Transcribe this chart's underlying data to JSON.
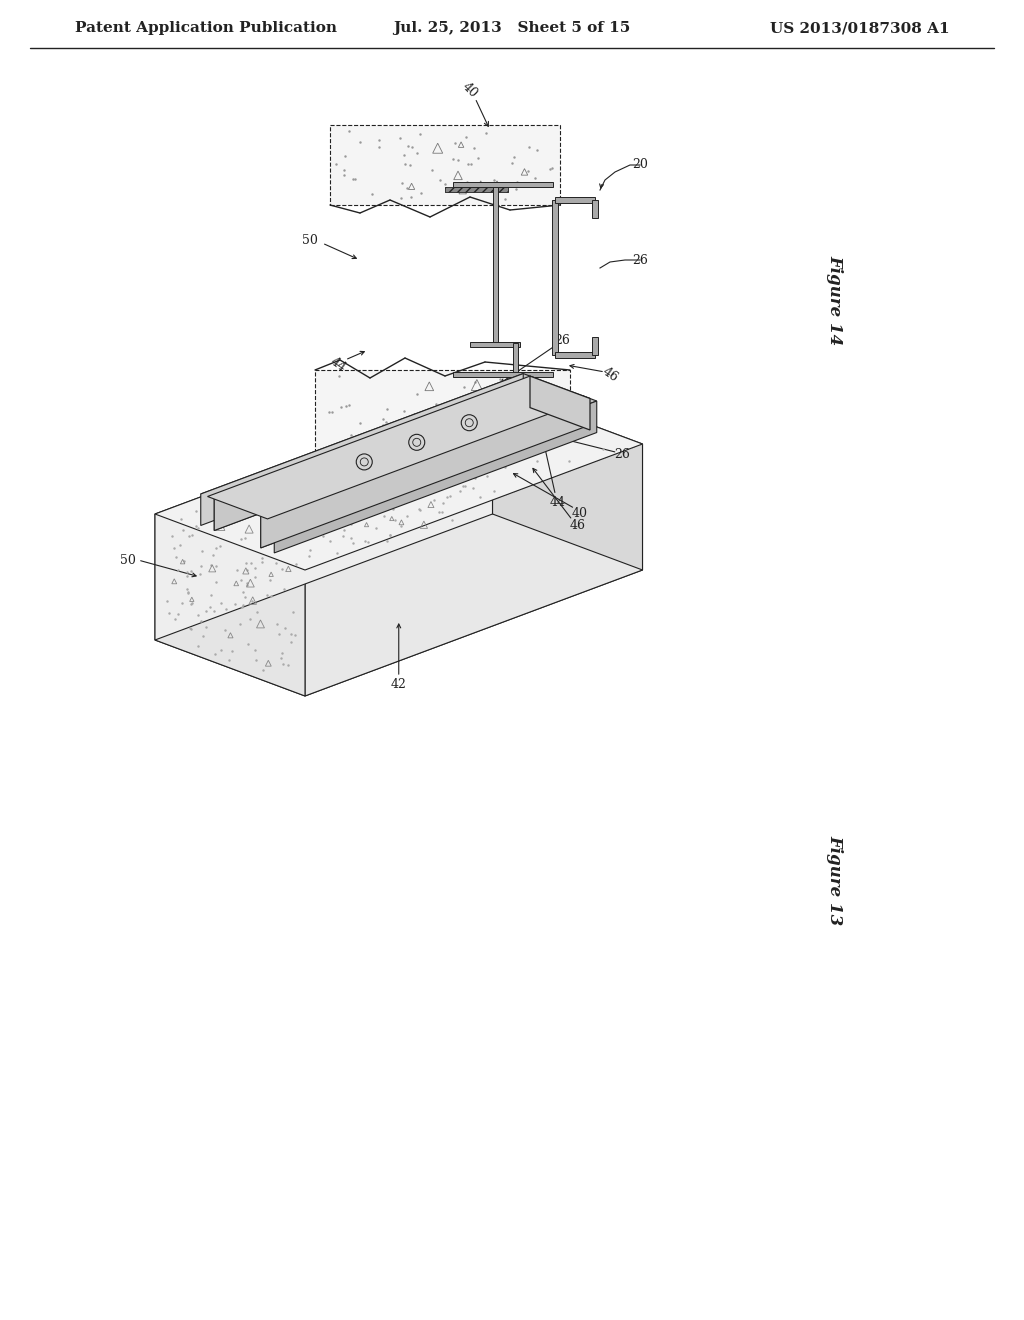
{
  "background_color": "#ffffff",
  "header_left": "Patent Application Publication",
  "header_center": "Jul. 25, 2013   Sheet 5 of 15",
  "header_right": "US 2013/0187308 A1",
  "line_color": "#222222",
  "fig14_label": "Figure 14",
  "fig13_label": "Figure 13"
}
